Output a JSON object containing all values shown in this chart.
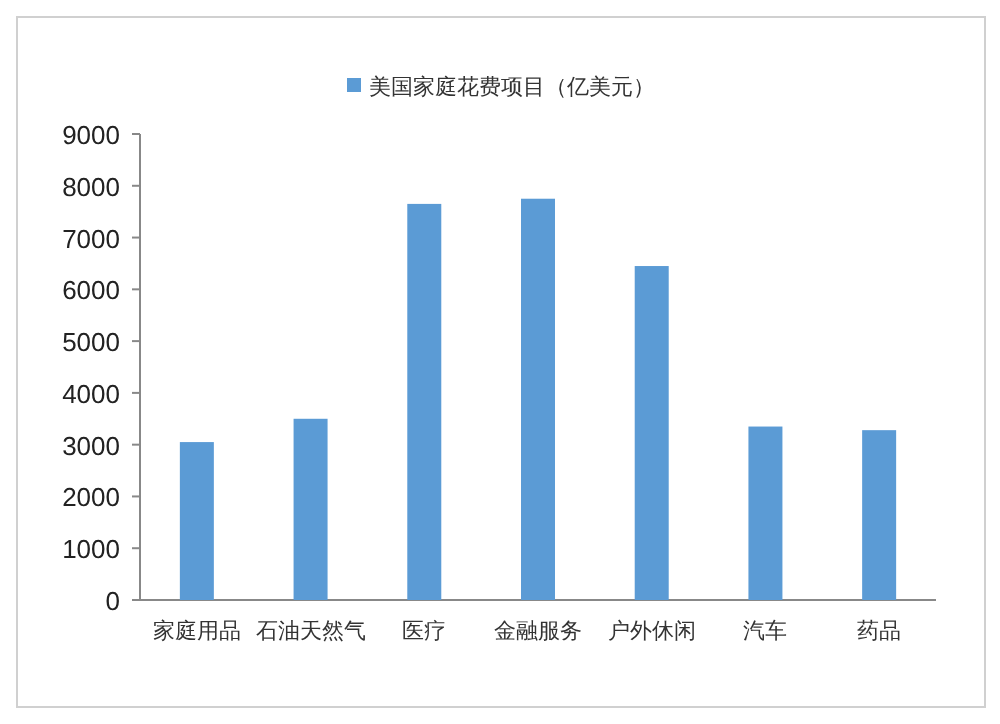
{
  "chart_data": {
    "type": "bar",
    "categories": [
      "家庭用品",
      "石油天然气",
      "医疗",
      "金融服务",
      "户外休闲",
      "汽车",
      "药品"
    ],
    "series": [
      {
        "name": "美国家庭花费项目（亿美元）",
        "color": "#5b9bd5",
        "values": [
          3050,
          3500,
          7650,
          7750,
          6450,
          3350,
          3280
        ]
      }
    ],
    "ylim": [
      0,
      9000
    ],
    "yticks": [
      0,
      1000,
      2000,
      3000,
      4000,
      5000,
      6000,
      7000,
      8000,
      9000
    ],
    "grid": false,
    "legend": "top"
  }
}
